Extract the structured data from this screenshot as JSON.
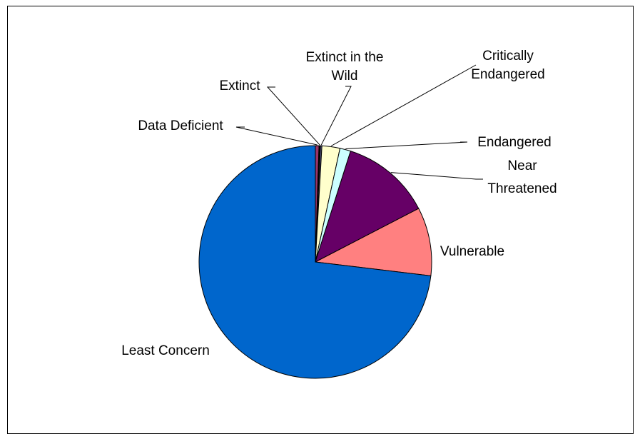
{
  "chart_data": {
    "type": "pie",
    "title": "",
    "slices": [
      {
        "name": "Data Deficient",
        "value": 0.5,
        "color": "#993366",
        "label_lines": [
          "Data Deficient"
        ]
      },
      {
        "name": "Extinct",
        "value": 0.2,
        "color": "#000000",
        "label_lines": [
          "Extinct"
        ]
      },
      {
        "name": "Extinct in the Wild",
        "value": 0.2,
        "color": "#666699",
        "label_lines": [
          "Extinct in the",
          "Wild"
        ]
      },
      {
        "name": "Critically Endangered",
        "value": 2.5,
        "color": "#FFFFCC",
        "label_lines": [
          "Critically",
          "Endangered"
        ]
      },
      {
        "name": "Endangered",
        "value": 1.5,
        "color": "#CCFFFF",
        "label_lines": [
          "Endangered"
        ]
      },
      {
        "name": "Near Threatened",
        "value": 12.5,
        "color": "#660066",
        "label_lines": [
          "Near",
          "Threatened"
        ]
      },
      {
        "name": "Vulnerable",
        "value": 9.5,
        "color": "#FF8080",
        "label_lines": [
          "Vulnerable"
        ]
      },
      {
        "name": "Least Concern",
        "value": 73.1,
        "color": "#0066CC",
        "label_lines": [
          "Least Concern"
        ]
      }
    ],
    "legend": "none",
    "start_angle": "12 o'clock, clockwise"
  }
}
